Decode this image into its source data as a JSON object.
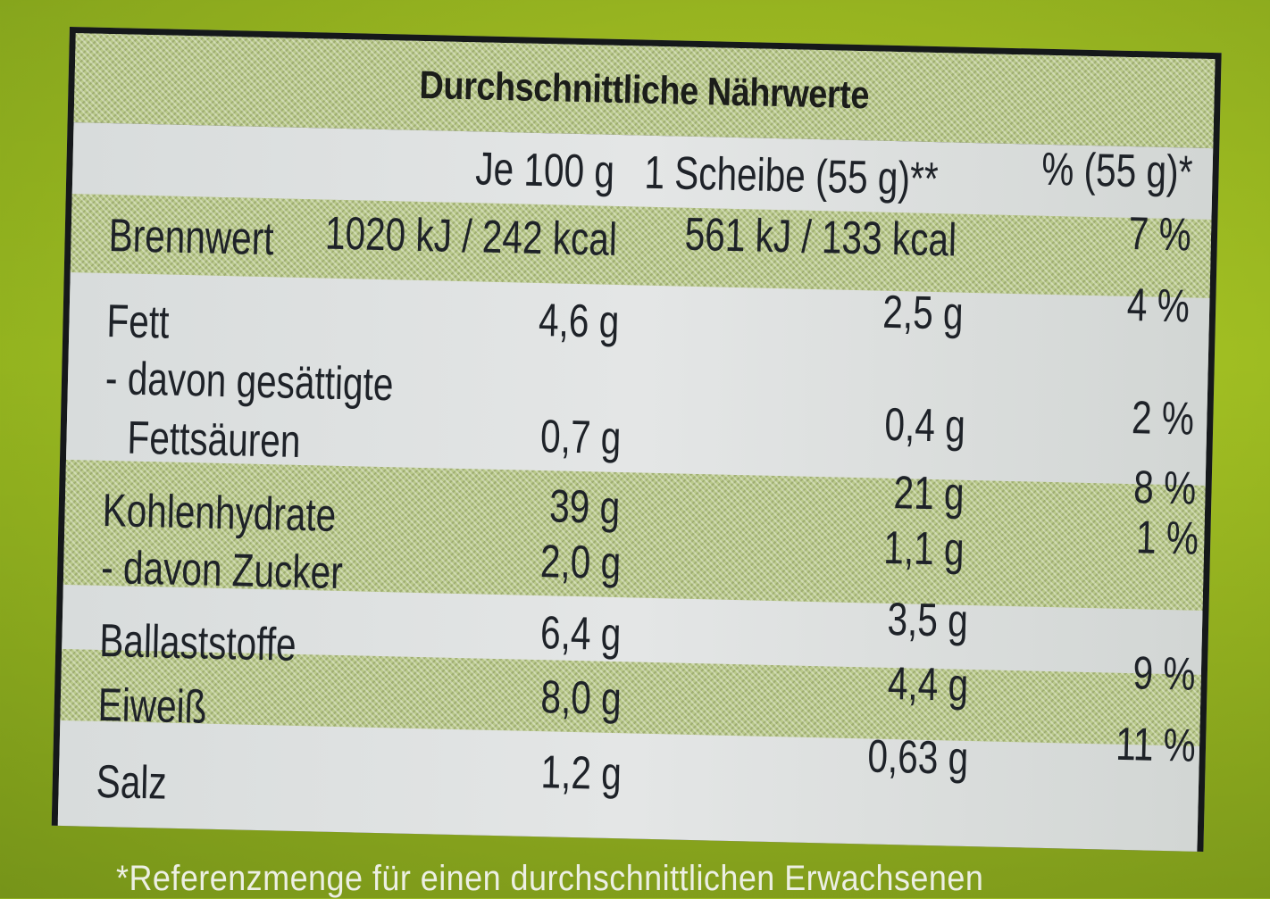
{
  "title": "Durchschnittliche Nährwerte",
  "columns": {
    "per100": "Je 100 g",
    "perSlice": "1 Scheibe (55 g)**",
    "percent": "% (55 g)*"
  },
  "rows": [
    {
      "label": "Brennwert",
      "per100": "1020 kJ / 242 kcal",
      "perSlice": "561 kJ / 133 kcal",
      "percent": "7 %"
    },
    {
      "label": "Fett",
      "per100": "4,6 g",
      "perSlice": "2,5 g",
      "percent": "4 %"
    },
    {
      "label": "- davon gesättigte",
      "label2": "Fettsäuren",
      "per100": "0,7 g",
      "perSlice": "0,4 g",
      "percent": "2 %"
    },
    {
      "label": "Kohlenhydrate",
      "per100": "39 g",
      "perSlice": "21 g",
      "percent": "8 %"
    },
    {
      "label": "- davon Zucker",
      "per100": "2,0 g",
      "perSlice": "1,1 g",
      "percent": "1 %"
    },
    {
      "label": "Ballaststoffe",
      "per100": "6,4 g",
      "perSlice": "3,5 g",
      "percent": ""
    },
    {
      "label": "Eiweiß",
      "per100": "8,0 g",
      "perSlice": "4,4 g",
      "percent": "9 %"
    },
    {
      "label": "Salz",
      "per100": "1,2 g",
      "perSlice": "0,63 g",
      "percent": "11 %"
    }
  ],
  "footnote": "*Referenzmenge für einen durchschnittlichen Erwachsenen",
  "colors": {
    "packaging": "#9fbd22",
    "border": "#15181a",
    "text": "#1e2228"
  }
}
